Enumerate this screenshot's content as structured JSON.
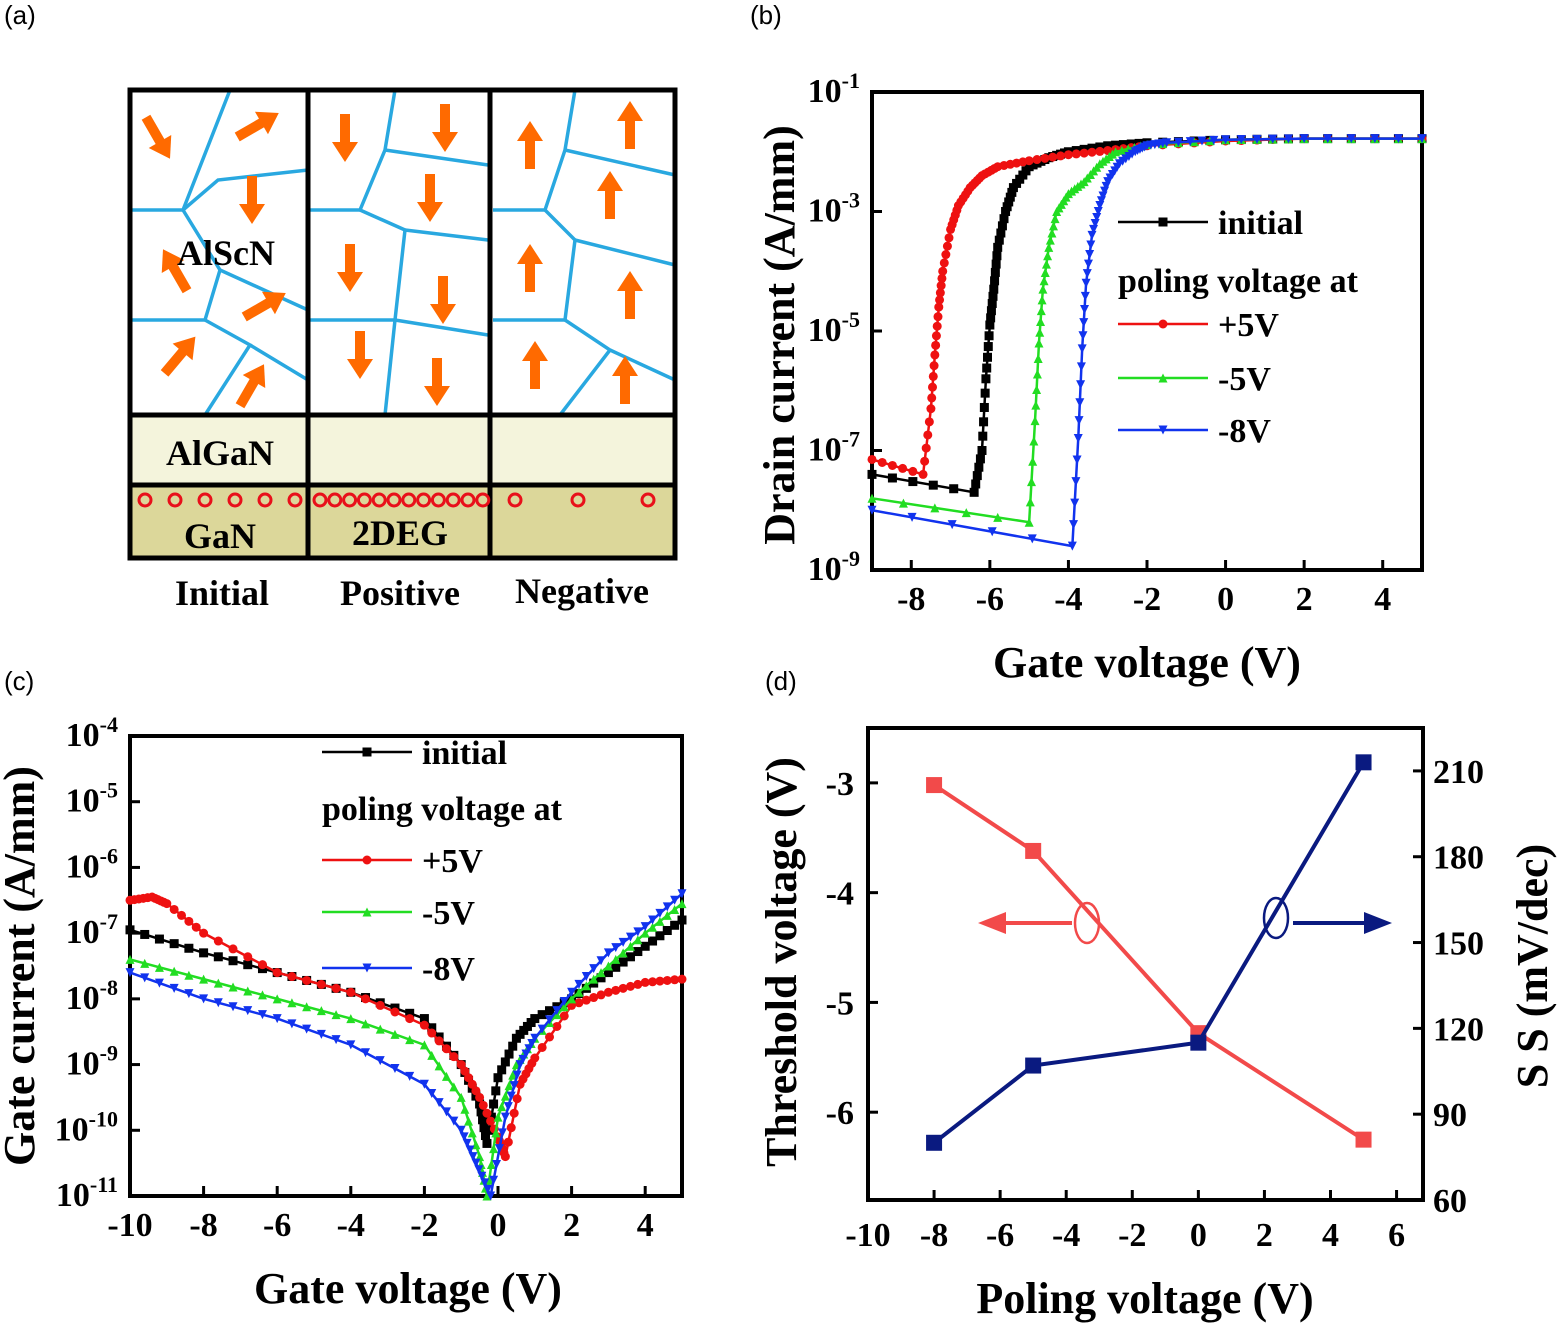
{
  "panel_a": {
    "letter": "(a)",
    "layers": {
      "alscn": "AlScN",
      "algan": "AlGaN",
      "gan": "GaN",
      "twodeg": "2DEG"
    },
    "columns": [
      "Initial",
      "Positive",
      "Negative"
    ],
    "colors": {
      "arrow": "#ff6a00",
      "grain": "#29a8e0",
      "algan": "#f4f4dc",
      "gan": "#dcd79a",
      "electron": "#e8101a"
    }
  },
  "chart_data": [
    {
      "id": "b",
      "type": "line",
      "letter": "(b)",
      "xlabel": "Gate voltage (V)",
      "ylabel": "Drain current (A/mm)",
      "xlim": [
        -9,
        5
      ],
      "ylim_log10": [
        -9,
        -1
      ],
      "yscale": "log",
      "xticks": [
        "-8",
        "-6",
        "-4",
        "-2",
        "0",
        "2",
        "4"
      ],
      "yticks": [
        {
          "base": "10",
          "exp": "-9"
        },
        {
          "base": "10",
          "exp": "-7"
        },
        {
          "base": "10",
          "exp": "-5"
        },
        {
          "base": "10",
          "exp": "-3"
        },
        {
          "base": "10",
          "exp": "-1"
        }
      ],
      "legend": {
        "position": "right",
        "header": "poling voltage at"
      },
      "series": [
        {
          "name": "initial",
          "color": "#000000",
          "marker": "square",
          "x": [
            -9,
            -6.4,
            -6.2,
            -6.1,
            -6.0,
            -5.9,
            -5.8,
            -5.6,
            -5.4,
            -5.0,
            -4.5,
            -4.0,
            -3.0,
            -2.0,
            0,
            2,
            5
          ],
          "log10y": [
            -7.4,
            -7.7,
            -7.0,
            -5.8,
            -4.9,
            -4.3,
            -3.6,
            -3.0,
            -2.6,
            -2.25,
            -2.1,
            -2.0,
            -1.9,
            -1.85,
            -1.8,
            -1.78,
            -1.78
          ]
        },
        {
          "name": "+5V",
          "color": "#ee1111",
          "marker": "circle",
          "x": [
            -9,
            -7.7,
            -7.5,
            -7.4,
            -7.3,
            -7.2,
            -7.0,
            -6.8,
            -6.5,
            -6.2,
            -5.8,
            -5.0,
            -4.0,
            -3.0,
            -2.0,
            0,
            2,
            5
          ],
          "log10y": [
            -7.15,
            -7.4,
            -6.3,
            -5.4,
            -4.6,
            -4.0,
            -3.3,
            -2.9,
            -2.6,
            -2.4,
            -2.25,
            -2.15,
            -2.05,
            -1.98,
            -1.9,
            -1.82,
            -1.78,
            -1.78
          ]
        },
        {
          "name": "-5V",
          "color": "#22dd22",
          "marker": "triangle-up",
          "x": [
            -9,
            -5.0,
            -4.85,
            -4.75,
            -4.65,
            -4.5,
            -4.3,
            -4.0,
            -3.6,
            -3.2,
            -2.8,
            -2.0,
            0,
            2,
            5
          ],
          "log10y": [
            -7.8,
            -8.2,
            -6.5,
            -5.2,
            -4.3,
            -3.6,
            -3.0,
            -2.7,
            -2.5,
            -2.2,
            -2.0,
            -1.88,
            -1.8,
            -1.78,
            -1.78
          ]
        },
        {
          "name": "-8V",
          "color": "#1133ee",
          "marker": "triangle-down",
          "x": [
            -9,
            -3.9,
            -3.75,
            -3.65,
            -3.55,
            -3.4,
            -3.2,
            -3.0,
            -2.7,
            -2.3,
            -2.0,
            -1.5,
            0,
            2,
            5
          ],
          "log10y": [
            -8.0,
            -8.6,
            -6.8,
            -5.3,
            -4.2,
            -3.4,
            -2.9,
            -2.5,
            -2.2,
            -2.0,
            -1.9,
            -1.85,
            -1.8,
            -1.78,
            -1.78
          ]
        }
      ]
    },
    {
      "id": "c",
      "type": "line",
      "letter": "(c)",
      "xlabel": "Gate voltage (V)",
      "ylabel": "Gate current (A/mm)",
      "xlim": [
        -10,
        5
      ],
      "ylim_log10": [
        -11,
        -4
      ],
      "yscale": "log",
      "xticks": [
        "-10",
        "-8",
        "-6",
        "-4",
        "-2",
        "0",
        "2",
        "4"
      ],
      "yticks": [
        {
          "base": "10",
          "exp": "-11"
        },
        {
          "base": "10",
          "exp": "-10"
        },
        {
          "base": "10",
          "exp": "-9"
        },
        {
          "base": "10",
          "exp": "-8"
        },
        {
          "base": "10",
          "exp": "-7"
        },
        {
          "base": "10",
          "exp": "-6"
        },
        {
          "base": "10",
          "exp": "-5"
        },
        {
          "base": "10",
          "exp": "-4"
        }
      ],
      "legend": {
        "position": "top-center",
        "header": "poling voltage at"
      },
      "series": [
        {
          "name": "initial",
          "color": "#000000",
          "marker": "square",
          "x": [
            -10,
            -8,
            -6,
            -4,
            -2,
            -1,
            -0.5,
            -0.3,
            0,
            0.5,
            1,
            2,
            3,
            4,
            5
          ],
          "log10y": [
            -6.95,
            -7.3,
            -7.6,
            -7.9,
            -8.3,
            -9.0,
            -9.6,
            -10.2,
            -9.2,
            -8.6,
            -8.3,
            -8.0,
            -7.6,
            -7.2,
            -6.8
          ]
        },
        {
          "name": "+5V",
          "color": "#ee1111",
          "marker": "circle",
          "x": [
            -10,
            -9.4,
            -9,
            -8,
            -6,
            -4,
            -2,
            -1,
            -0.5,
            0,
            0.2,
            0.6,
            1,
            2,
            3,
            4,
            5
          ],
          "log10y": [
            -6.5,
            -6.45,
            -6.55,
            -7.0,
            -7.6,
            -7.9,
            -8.4,
            -9.0,
            -9.5,
            -10.1,
            -10.4,
            -9.3,
            -8.9,
            -8.1,
            -7.9,
            -7.75,
            -7.7
          ]
        },
        {
          "name": "-5V",
          "color": "#22dd22",
          "marker": "triangle-up",
          "x": [
            -10,
            -8,
            -6,
            -4,
            -2,
            -1,
            -0.5,
            -0.3,
            0,
            0.5,
            1,
            2,
            3,
            4,
            5
          ],
          "log10y": [
            -7.4,
            -7.7,
            -8.0,
            -8.3,
            -8.7,
            -9.5,
            -10.4,
            -11.0,
            -9.8,
            -9.0,
            -8.6,
            -8.0,
            -7.5,
            -7.0,
            -6.55
          ]
        },
        {
          "name": "-8V",
          "color": "#1133ee",
          "marker": "triangle-down",
          "x": [
            -10,
            -8,
            -6,
            -4,
            -2,
            -1,
            -0.6,
            -0.2,
            0.2,
            0.6,
            1,
            2,
            3,
            4,
            5
          ],
          "log10y": [
            -7.6,
            -8.0,
            -8.3,
            -8.7,
            -9.3,
            -10.0,
            -10.5,
            -11.0,
            -9.8,
            -9.0,
            -8.6,
            -7.9,
            -7.3,
            -6.9,
            -6.4
          ]
        }
      ]
    },
    {
      "id": "d",
      "type": "line",
      "letter": "(d)",
      "xlabel": "Poling voltage (V)",
      "ylabel": "Threshold voltage (V)",
      "ylabel_right": "S S (mV/dec)",
      "xlim": [
        -10,
        6.8
      ],
      "ylim": [
        -6.8,
        -2.5
      ],
      "ylim_right": [
        60,
        225
      ],
      "xticks": [
        "-10",
        "-8",
        "-6",
        "-4",
        "-2",
        "0",
        "2",
        "4",
        "6"
      ],
      "yticks": [
        "-3",
        "-4",
        "-5",
        "-6"
      ],
      "yticks_right": [
        "60",
        "90",
        "120",
        "150",
        "180",
        "210"
      ],
      "series": [
        {
          "name": "Threshold voltage",
          "axis": "left",
          "color": "#f24a4a",
          "marker": "square",
          "x": [
            -8,
            -5,
            0,
            5
          ],
          "y": [
            -3.02,
            -3.62,
            -5.28,
            -6.25
          ]
        },
        {
          "name": "S S",
          "axis": "right",
          "color": "#0a1a80",
          "marker": "square",
          "x": [
            -8,
            -5,
            0,
            5
          ],
          "y": [
            80,
            107,
            115,
            213
          ]
        }
      ]
    }
  ]
}
